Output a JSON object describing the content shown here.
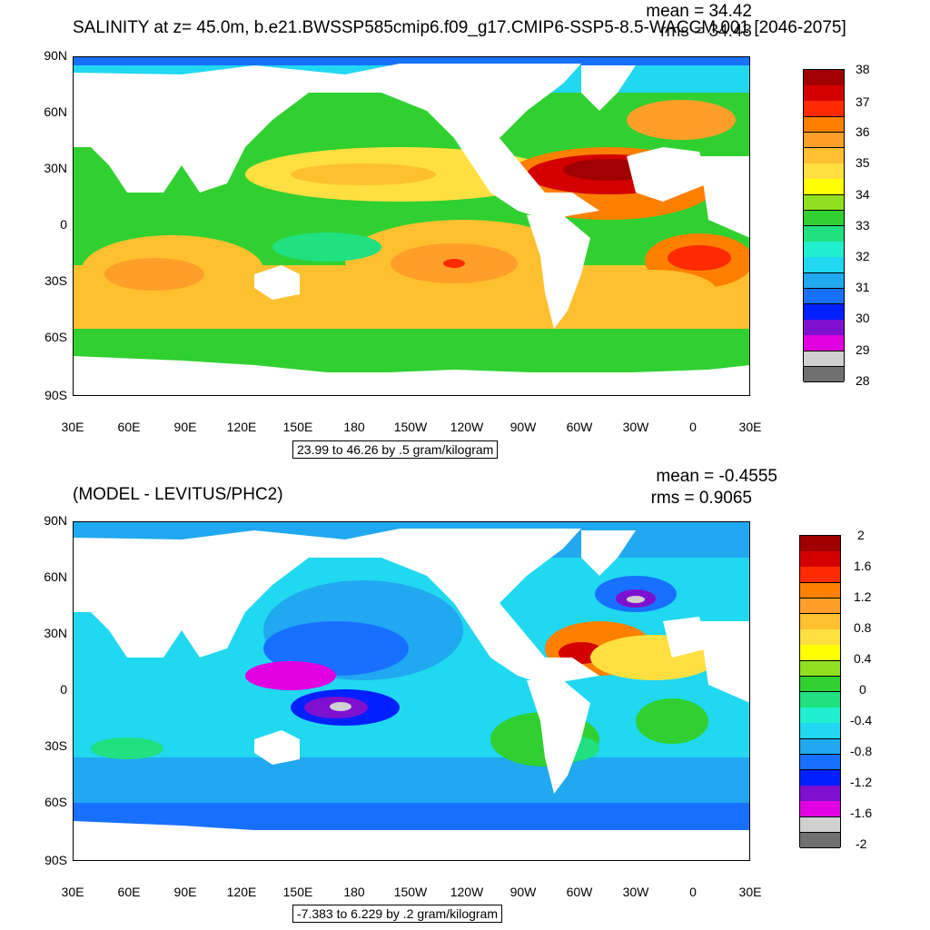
{
  "panel1": {
    "title": "SALINITY at z=  45.0m, b.e21.BWSSP585cmip6.f09_g17.CMIP6-SSP5-8.5-WACCM.001 [2046-2075]",
    "mean": "mean = 34.42",
    "rms": "rms = 34.43",
    "lat_labels": [
      "90N",
      "60N",
      "30N",
      "0",
      "30S",
      "60S",
      "90S"
    ],
    "lon_labels": [
      "30E",
      "60E",
      "90E",
      "120E",
      "150E",
      "180",
      "150W",
      "120W",
      "90W",
      "60W",
      "30W",
      "0",
      "30E"
    ],
    "range_note": "23.99 to 46.26 by .5 gram/kilogram",
    "colorbar_labels": [
      "38",
      "37",
      "36",
      "35",
      "34",
      "33",
      "32",
      "31",
      "30",
      "29",
      "28"
    ],
    "colorbar_colors": [
      "#a00000",
      "#d40000",
      "#ff2a00",
      "#ff7f00",
      "#ff9f2a",
      "#ffc030",
      "#ffe040",
      "#ffff00",
      "#90e020",
      "#30d030",
      "#20e080",
      "#20f0d0",
      "#20d8f0",
      "#20a8f0",
      "#1870ff",
      "#0020ff",
      "#8010d0",
      "#e000e0",
      "#d0d0d0",
      "#707070"
    ]
  },
  "panel2": {
    "title": "(MODEL - LEVITUS/PHC2)",
    "mean": "mean = -0.4555",
    "rms": "rms = 0.9065",
    "lat_labels": [
      "90N",
      "60N",
      "30N",
      "0",
      "30S",
      "60S",
      "90S"
    ],
    "lon_labels": [
      "30E",
      "60E",
      "90E",
      "120E",
      "150E",
      "180",
      "150W",
      "120W",
      "90W",
      "60W",
      "30W",
      "0",
      "30E"
    ],
    "range_note": "-7.383 to 6.229 by .2 gram/kilogram",
    "colorbar_labels": [
      "2",
      "1.6",
      "1.2",
      "0.8",
      "0.4",
      "0",
      "-0.4",
      "-0.8",
      "-1.2",
      "-1.6",
      "-2"
    ],
    "colorbar_colors": [
      "#a00000",
      "#d40000",
      "#ff2a00",
      "#ff7f00",
      "#ff9f2a",
      "#ffc030",
      "#ffe040",
      "#ffff00",
      "#90e020",
      "#30d030",
      "#20e080",
      "#20f0d0",
      "#20d8f0",
      "#20a8f0",
      "#1870ff",
      "#0020ff",
      "#8010d0",
      "#e000e0",
      "#d0d0d0",
      "#707070"
    ]
  }
}
